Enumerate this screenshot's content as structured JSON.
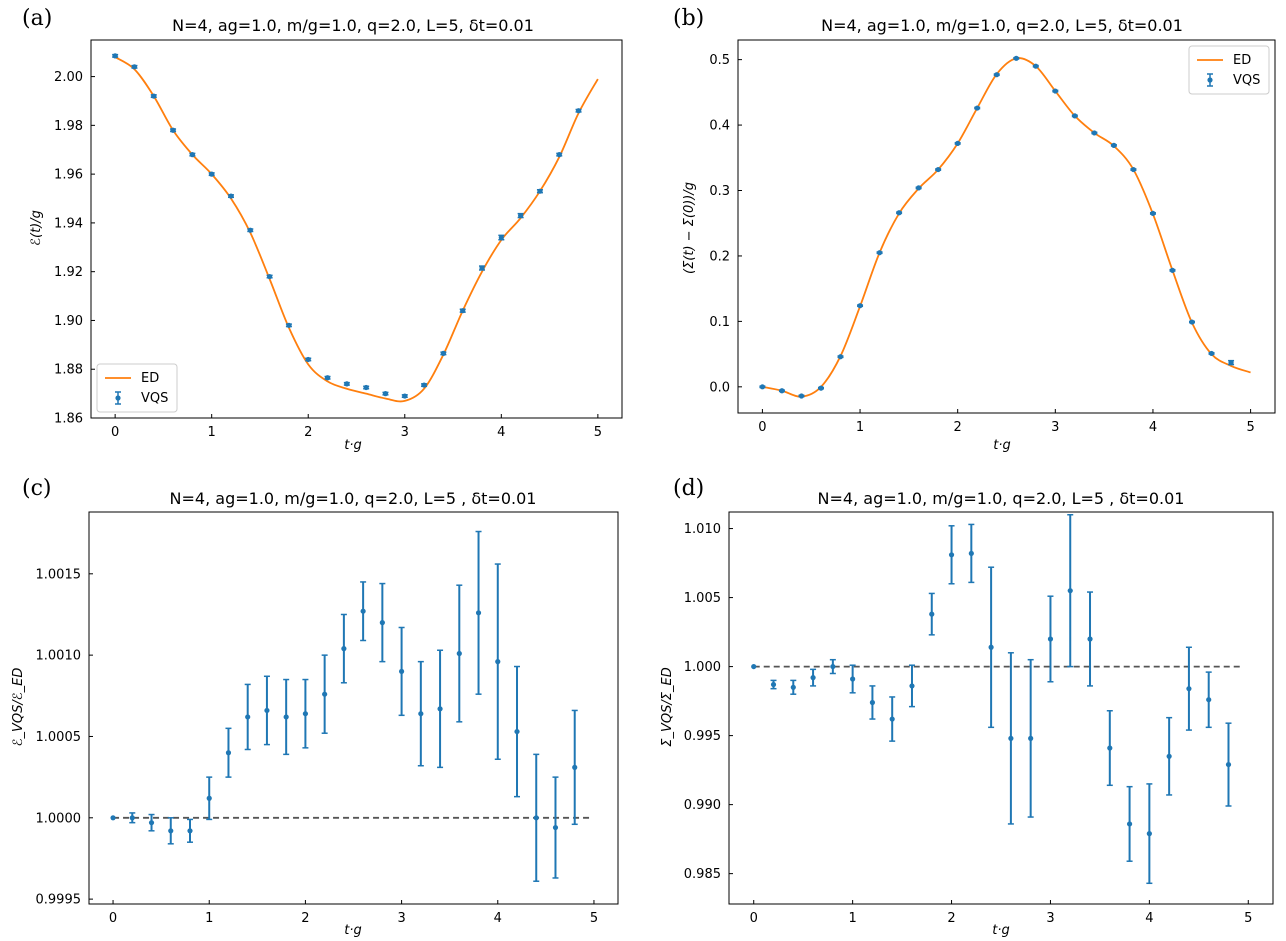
{
  "colors": {
    "ed": "#ff7f0e",
    "vqs": "#1f77b4",
    "ref": "#555555"
  },
  "panels": [
    {
      "label": "(a)",
      "chart_data": {
        "type": "line",
        "title": "N=4, ag=1.0, m/g=1.0, q=2.0, L=5, δt=0.01",
        "xlabel": "t·g",
        "ylabel": "ℰ(t)/g",
        "xlim": [
          -0.25,
          5.25
        ],
        "ylim": [
          1.86,
          2.015
        ],
        "xticks": [
          "0",
          "1",
          "2",
          "3",
          "4",
          "5"
        ],
        "xtick_values": [
          0,
          1,
          2,
          3,
          4,
          5
        ],
        "yticks": [
          "1.86",
          "1.88",
          "1.90",
          "1.92",
          "1.94",
          "1.96",
          "1.98",
          "2.00"
        ],
        "ytick_values": [
          1.86,
          1.88,
          1.9,
          1.92,
          1.94,
          1.96,
          1.98,
          2.0
        ],
        "legend": [
          "ED",
          "VQS"
        ],
        "legend_position": "lower left",
        "series": [
          {
            "name": "ED",
            "kind": "line",
            "x": [
              0,
              0.2,
              0.4,
              0.6,
              0.8,
              1.0,
              1.2,
              1.4,
              1.6,
              1.8,
              2.0,
              2.2,
              2.4,
              2.6,
              2.8,
              3.0,
              3.2,
              3.4,
              3.6,
              3.8,
              4.0,
              4.2,
              4.4,
              4.6,
              4.8,
              5.0
            ],
            "y": [
              2.008,
              2.003,
              1.992,
              1.978,
              1.968,
              1.96,
              1.95,
              1.936,
              1.917,
              1.897,
              1.882,
              1.875,
              1.872,
              1.87,
              1.868,
              1.867,
              1.872,
              1.886,
              1.904,
              1.92,
              1.933,
              1.942,
              1.953,
              1.967,
              1.985,
              1.999
            ]
          },
          {
            "name": "VQS",
            "kind": "errorbar",
            "x": [
              0,
              0.2,
              0.4,
              0.6,
              0.8,
              1.0,
              1.2,
              1.4,
              1.6,
              1.8,
              2.0,
              2.2,
              2.4,
              2.6,
              2.8,
              3.0,
              3.2,
              3.4,
              3.6,
              3.8,
              4.0,
              4.2,
              4.4,
              4.6,
              4.8
            ],
            "y": [
              2.0085,
              2.004,
              1.992,
              1.978,
              1.968,
              1.96,
              1.951,
              1.937,
              1.918,
              1.898,
              1.884,
              1.8765,
              1.874,
              1.8725,
              1.87,
              1.869,
              1.8735,
              1.8865,
              1.904,
              1.9215,
              1.934,
              1.943,
              1.953,
              1.968,
              1.986
            ],
            "err": [
              0.0005,
              0.0005,
              0.0005,
              0.0005,
              0.0005,
              0.0005,
              0.0005,
              0.0005,
              0.0005,
              0.0005,
              0.0005,
              0.0005,
              0.0005,
              0.0005,
              0.0005,
              0.0005,
              0.0005,
              0.0005,
              0.0006,
              0.0008,
              0.0009,
              0.0008,
              0.0006,
              0.0005,
              0.0005
            ]
          }
        ]
      }
    },
    {
      "label": "(b)",
      "chart_data": {
        "type": "line",
        "title": "N=4, ag=1.0, m/g=1.0, q=2.0, L=5, δt=0.01",
        "xlabel": "t·g",
        "ylabel": "(Σ(t) − Σ(0))/g",
        "xlim": [
          -0.25,
          5.25
        ],
        "ylim": [
          -0.04,
          0.53
        ],
        "xticks": [
          "0",
          "1",
          "2",
          "3",
          "4",
          "5"
        ],
        "xtick_values": [
          0,
          1,
          2,
          3,
          4,
          5
        ],
        "yticks": [
          "0.0",
          "0.1",
          "0.2",
          "0.3",
          "0.4",
          "0.5"
        ],
        "ytick_values": [
          0,
          0.1,
          0.2,
          0.3,
          0.4,
          0.5
        ],
        "legend": [
          "ED",
          "VQS"
        ],
        "legend_position": "upper right",
        "series": [
          {
            "name": "ED",
            "kind": "line",
            "x": [
              0,
              0.2,
              0.4,
              0.6,
              0.8,
              1.0,
              1.2,
              1.4,
              1.6,
              1.8,
              2.0,
              2.2,
              2.4,
              2.6,
              2.8,
              3.0,
              3.2,
              3.4,
              3.6,
              3.8,
              4.0,
              4.2,
              4.4,
              4.6,
              4.8,
              5.0
            ],
            "y": [
              0.0,
              -0.006,
              -0.015,
              0.0,
              0.047,
              0.123,
              0.205,
              0.265,
              0.303,
              0.332,
              0.372,
              0.426,
              0.478,
              0.502,
              0.49,
              0.452,
              0.414,
              0.388,
              0.368,
              0.332,
              0.264,
              0.178,
              0.098,
              0.05,
              0.032,
              0.022
            ]
          },
          {
            "name": "VQS",
            "kind": "errorbar",
            "x": [
              0,
              0.2,
              0.4,
              0.6,
              0.8,
              1.0,
              1.2,
              1.4,
              1.6,
              1.8,
              2.0,
              2.2,
              2.4,
              2.6,
              2.8,
              3.0,
              3.2,
              3.4,
              3.6,
              3.8,
              4.0,
              4.2,
              4.4,
              4.6,
              4.8
            ],
            "y": [
              0.0,
              -0.006,
              -0.014,
              -0.002,
              0.046,
              0.124,
              0.205,
              0.266,
              0.304,
              0.332,
              0.372,
              0.426,
              0.477,
              0.502,
              0.49,
              0.452,
              0.414,
              0.388,
              0.369,
              0.332,
              0.265,
              0.178,
              0.099,
              0.051,
              0.037
            ],
            "err": [
              0.001,
              0.001,
              0.001,
              0.001,
              0.001,
              0.001,
              0.001,
              0.001,
              0.001,
              0.001,
              0.001,
              0.001,
              0.001,
              0.001,
              0.001,
              0.001,
              0.001,
              0.001,
              0.001,
              0.001,
              0.001,
              0.001,
              0.001,
              0.001,
              0.003
            ]
          }
        ]
      }
    },
    {
      "label": "(c)",
      "chart_data": {
        "type": "scatter",
        "title": "N=4, ag=1.0, m/g=1.0, q=2.0, L=5 , δt=0.01",
        "xlabel": "t·g",
        "ylabel": "ℰ_VQS/ℰ_ED",
        "xlim": [
          -0.25,
          5.25
        ],
        "ylim": [
          0.99947,
          1.00188
        ],
        "xticks": [
          "0",
          "1",
          "2",
          "3",
          "4",
          "5"
        ],
        "xtick_values": [
          0,
          1,
          2,
          3,
          4,
          5
        ],
        "yticks": [
          "0.9995",
          "1.0000",
          "1.0005",
          "1.0010",
          "1.0015"
        ],
        "ytick_values": [
          0.9995,
          1.0,
          1.0005,
          1.001,
          1.0015
        ],
        "reference_line": 1.0,
        "series": [
          {
            "name": "",
            "kind": "errorbar",
            "x": [
              0,
              0.2,
              0.4,
              0.6,
              0.8,
              1.0,
              1.2,
              1.4,
              1.6,
              1.8,
              2.0,
              2.2,
              2.4,
              2.6,
              2.8,
              3.0,
              3.2,
              3.4,
              3.6,
              3.8,
              4.0,
              4.2,
              4.4,
              4.6,
              4.8
            ],
            "y": [
              1.0,
              1.0,
              0.99997,
              0.99992,
              0.99992,
              1.00012,
              1.0004,
              1.00062,
              1.00066,
              1.00062,
              1.00064,
              1.00076,
              1.00104,
              1.00127,
              1.0012,
              1.0009,
              1.00064,
              1.00067,
              1.00101,
              1.00126,
              1.00096,
              1.00053,
              1.0,
              0.99994,
              1.00031
            ],
            "err": [
              0.0,
              3e-05,
              5e-05,
              8e-05,
              7e-05,
              0.00013,
              0.00015,
              0.0002,
              0.00021,
              0.00023,
              0.00021,
              0.00024,
              0.00021,
              0.00018,
              0.00024,
              0.00027,
              0.00032,
              0.00036,
              0.00042,
              0.0005,
              0.0006,
              0.0004,
              0.00039,
              0.00031,
              0.00035
            ]
          }
        ]
      }
    },
    {
      "label": "(d)",
      "chart_data": {
        "type": "scatter",
        "title": "N=4, ag=1.0, m/g=1.0, q=2.0, L=5 , δt=0.01",
        "xlabel": "t·g",
        "ylabel": "Σ_VQS/Σ_ED",
        "xlim": [
          -0.25,
          5.25
        ],
        "ylim": [
          0.9828,
          1.0112
        ],
        "xticks": [
          "0",
          "1",
          "2",
          "3",
          "4",
          "5"
        ],
        "xtick_values": [
          0,
          1,
          2,
          3,
          4,
          5
        ],
        "yticks": [
          "0.985",
          "0.990",
          "0.995",
          "1.000",
          "1.005",
          "1.010"
        ],
        "ytick_values": [
          0.985,
          0.99,
          0.995,
          1.0,
          1.005,
          1.01
        ],
        "reference_line": 1.0,
        "series": [
          {
            "name": "",
            "kind": "errorbar",
            "x": [
              0,
              0.2,
              0.4,
              0.6,
              0.8,
              1.0,
              1.2,
              1.4,
              1.6,
              1.8,
              2.0,
              2.2,
              2.4,
              2.6,
              2.8,
              3.0,
              3.2,
              3.4,
              3.6,
              3.8,
              4.0,
              4.2,
              4.4,
              4.6,
              4.8
            ],
            "y": [
              1.0,
              0.9987,
              0.9985,
              0.9992,
              1.0,
              0.9991,
              0.9974,
              0.9962,
              0.9986,
              1.0038,
              1.0081,
              1.0082,
              1.0014,
              0.9948,
              0.9948,
              1.002,
              1.0055,
              1.002,
              0.9941,
              0.9886,
              0.9879,
              0.9935,
              0.9984,
              0.9976,
              0.9929
            ],
            "err": [
              0.0,
              0.0003,
              0.0005,
              0.0006,
              0.0005,
              0.001,
              0.0012,
              0.0016,
              0.0015,
              0.0015,
              0.0021,
              0.0021,
              0.0058,
              0.0062,
              0.0057,
              0.0031,
              0.0055,
              0.0034,
              0.0027,
              0.0027,
              0.0036,
              0.0028,
              0.003,
              0.002,
              0.003
            ]
          }
        ]
      }
    }
  ]
}
